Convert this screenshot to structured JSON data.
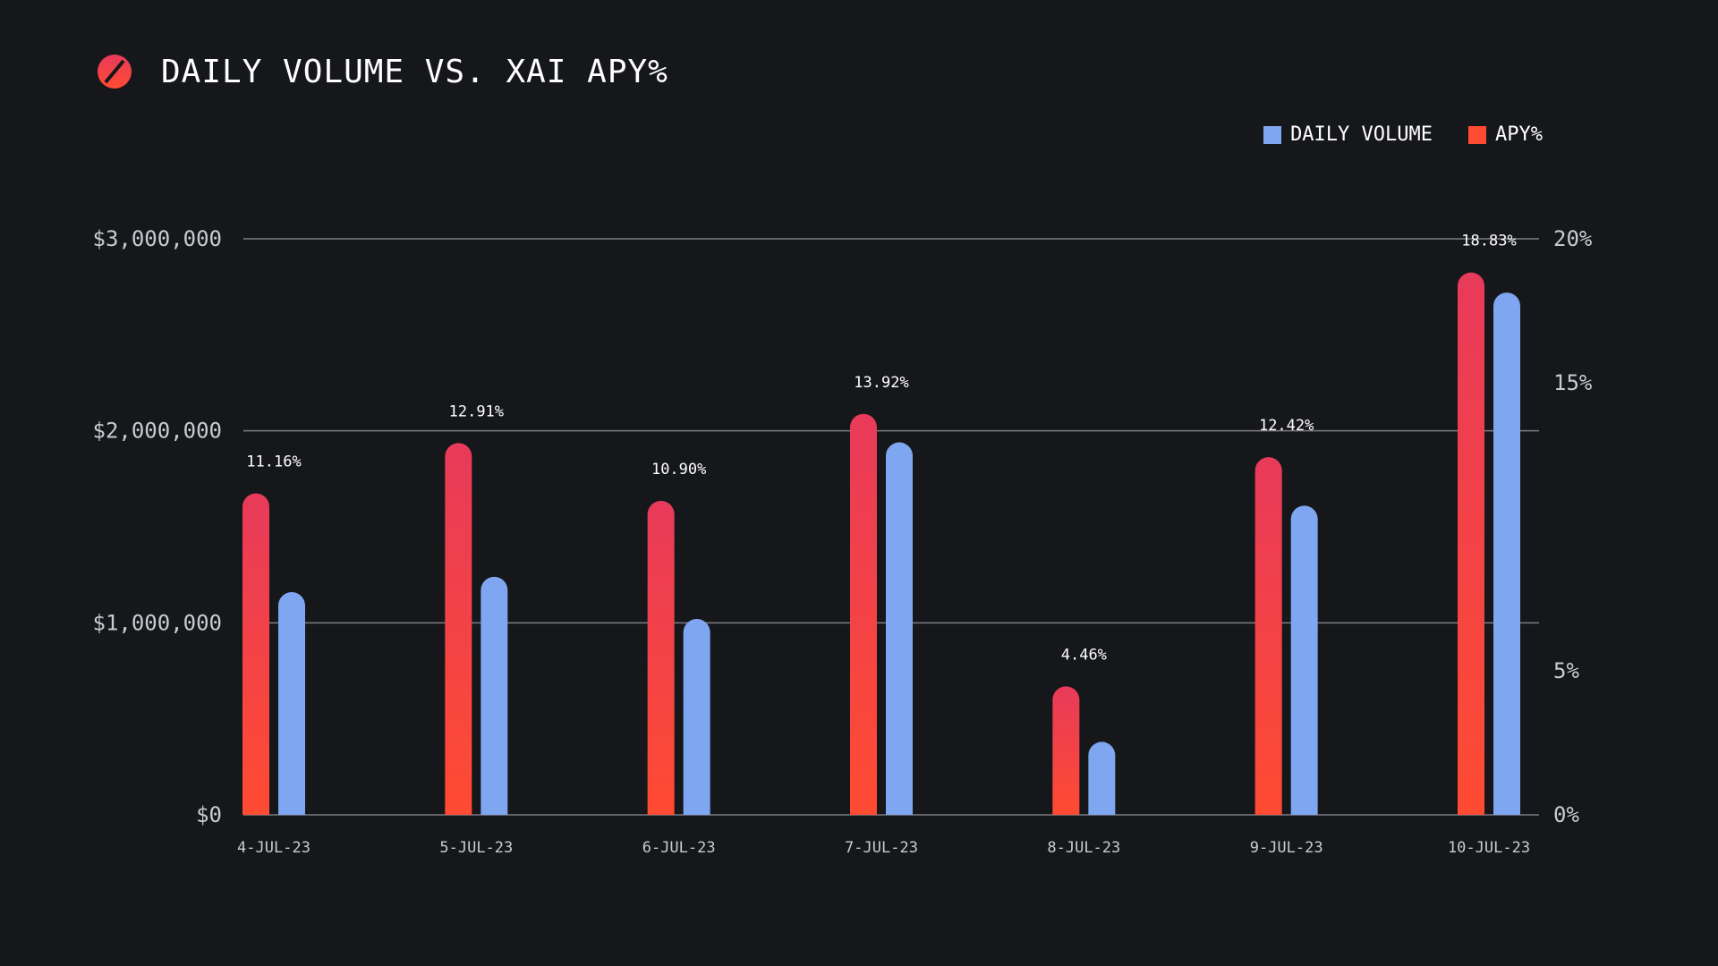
{
  "header": {
    "title": "DAILY VOLUME VS. XAI APY%"
  },
  "colors": {
    "background": "#16171b",
    "volume": "#7fa6f0",
    "apy_top": "#e83a5a",
    "apy_bottom": "#ff4b32",
    "grid": "#7b7d84",
    "tick_label": "#c9cbd1"
  },
  "chart_data": {
    "type": "bar",
    "title": "DAILY VOLUME VS. XAI APY%",
    "legend_position": "top-right",
    "grid": true,
    "categories": [
      "4-JUL-23",
      "5-JUL-23",
      "6-JUL-23",
      "7-JUL-23",
      "8-JUL-23",
      "9-JUL-23",
      "10-JUL-23"
    ],
    "series": [
      {
        "name": "DAILY VOLUME",
        "axis": "left",
        "values": [
          1160000,
          1240000,
          1020000,
          1940000,
          380000,
          1610000,
          2720000
        ]
      },
      {
        "name": "APY%",
        "axis": "right",
        "values": [
          11.16,
          12.91,
          10.9,
          13.92,
          4.46,
          12.42,
          18.83
        ],
        "labels": [
          "11.16%",
          "12.91%",
          "10.90%",
          "13.92%",
          "4.46%",
          "12.42%",
          "18.83%"
        ]
      }
    ],
    "left_axis": {
      "ticks": [
        0,
        1000000,
        2000000,
        3000000
      ],
      "tick_labels": [
        "$0",
        "$1,000,000",
        "$2,000,000",
        "$3,000,000"
      ]
    },
    "right_axis": {
      "ticks": [
        0,
        5,
        15,
        20
      ],
      "tick_labels": [
        "0%",
        "5%",
        "15%",
        "20%"
      ]
    }
  }
}
